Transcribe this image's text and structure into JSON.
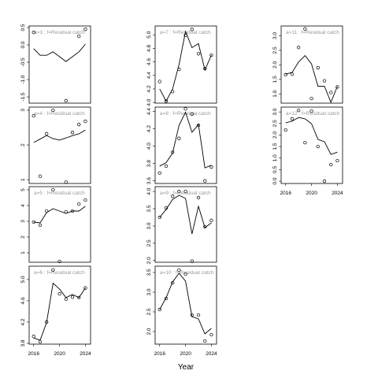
{
  "chart_data": [
    {
      "type": "line",
      "label": "a=3  :  f=Residual catch",
      "x": [
        2016,
        2017,
        2018,
        2019,
        2020,
        2021,
        2022,
        2023,
        2024
      ],
      "xlim": [
        2015.3,
        2024.8
      ],
      "ylim": [
        -1.68,
        0.545
      ],
      "yticks": [
        -1.5,
        {
          "value": -1,
          "label": "-1.0"
        },
        -0.5,
        {
          "value": 0,
          "label": "0.0"
        },
        0.5
      ],
      "series": [
        {
          "style": "points",
          "color": "#000000",
          "values": [
            0.36,
            null,
            null,
            null,
            null,
            -1.61,
            null,
            0.25,
            0.45
          ]
        },
        {
          "style": "line",
          "color": "#000000",
          "values": [
            -0.11,
            -0.3,
            -0.3,
            -0.2,
            -0.34,
            -0.48,
            -0.34,
            -0.2,
            0.02
          ]
        }
      ]
    },
    {
      "type": "line",
      "label": "a=4  :  f=Residual catch",
      "x": [
        2016,
        2017,
        2018,
        2019,
        2020,
        2021,
        2022,
        2023,
        2024
      ],
      "xlim": [
        2015.3,
        2024.8
      ],
      "ylim": [
        0.89,
        3.09
      ],
      "yticks": [
        1,
        2,
        3
      ],
      "series": [
        {
          "style": "points",
          "color": "#000000",
          "values": [
            2.84,
            1.1,
            2.32,
            3.0,
            null,
            0.93,
            2.36,
            2.59,
            2.68
          ]
        },
        {
          "style": "line",
          "color": "#000000",
          "values": [
            2.07,
            2.17,
            2.27,
            2.18,
            2.14,
            2.2,
            2.27,
            2.32,
            2.43
          ]
        }
      ]
    },
    {
      "type": "line",
      "label": "a=5  :  f=Residual catch",
      "x": [
        2016,
        2017,
        2018,
        2019,
        2020,
        2021,
        2022,
        2023,
        2024
      ],
      "xlim": [
        2015.3,
        2024.8
      ],
      "ylim": [
        0.4,
        5.2
      ],
      "yticks": [
        1,
        2,
        3,
        4,
        5
      ],
      "series": [
        {
          "style": "points",
          "color": "#000000",
          "values": [
            2.95,
            2.75,
            3.65,
            5.0,
            0.45,
            3.6,
            3.65,
            4.1,
            4.35
          ]
        },
        {
          "style": "line",
          "color": "#000000",
          "values": [
            2.95,
            2.9,
            3.55,
            3.8,
            3.65,
            3.5,
            3.65,
            3.65,
            3.95
          ]
        }
      ]
    },
    {
      "type": "line",
      "label": "a=6  :  f=Residual catch",
      "x": [
        2016,
        2017,
        2018,
        2019,
        2020,
        2021,
        2022,
        2023,
        2024
      ],
      "xlim": [
        2015.3,
        2024.8
      ],
      "ylim": [
        3.785,
        5.25
      ],
      "yticks": [
        3.8,
        4.2,
        4.6,
        {
          "value": 5,
          "label": "5.0"
        }
      ],
      "xticks": [
        2016,
        2020,
        2024
      ],
      "series": [
        {
          "style": "points",
          "color": "#000000",
          "values": [
            3.93,
            3.83,
            4.2,
            5.18,
            4.73,
            4.63,
            4.67,
            4.66,
            4.84
          ]
        },
        {
          "style": "line",
          "color": "#000000",
          "values": [
            3.9,
            3.86,
            4.19,
            4.93,
            4.82,
            4.66,
            4.72,
            4.66,
            4.84
          ]
        }
      ]
    },
    {
      "type": "line",
      "label": "a=7  :  f=Residual catch",
      "x": [
        2016,
        2017,
        2018,
        2019,
        2020,
        2021,
        2022,
        2023,
        2024
      ],
      "xlim": [
        2015.3,
        2024.8
      ],
      "ylim": [
        3.99,
        5.13
      ],
      "yticks": [
        {
          "value": 4,
          "label": "4.0"
        },
        4.2,
        4.4,
        4.6,
        4.8,
        {
          "value": 5,
          "label": "5.0"
        }
      ],
      "series": [
        {
          "style": "points",
          "color": "#000000",
          "values": [
            4.31,
            4.02,
            4.16,
            4.49,
            4.99,
            5.08,
            4.72,
            4.5,
            4.7
          ]
        },
        {
          "style": "line",
          "color": "#000000",
          "values": [
            4.2,
            4.02,
            4.2,
            4.56,
            5.05,
            4.81,
            4.87,
            4.48,
            4.7
          ]
        }
      ]
    },
    {
      "type": "line",
      "label": "a=8  :  f=Residual catch",
      "x": [
        2016,
        2017,
        2018,
        2019,
        2020,
        2021,
        2022,
        2023,
        2024
      ],
      "xlim": [
        2015.3,
        2024.8
      ],
      "ylim": [
        3.57,
        4.45
      ],
      "yticks": [
        3.6,
        3.8,
        {
          "value": 4,
          "label": "4.0"
        },
        4.2,
        4.4
      ],
      "series": [
        {
          "style": "points",
          "color": "#000000",
          "values": [
            3.69,
            3.77,
            3.93,
            4.09,
            4.43,
            4.37,
            4.24,
            3.6,
            3.76
          ]
        },
        {
          "style": "line",
          "color": "#000000",
          "values": [
            3.77,
            3.81,
            3.92,
            4.24,
            4.39,
            4.16,
            4.25,
            3.75,
            3.78
          ]
        }
      ]
    },
    {
      "type": "line",
      "label": "a=9  :  f=Residual catch",
      "x": [
        2016,
        2017,
        2018,
        2019,
        2020,
        2021,
        2022,
        2023,
        2024
      ],
      "xlim": [
        2015.3,
        2024.8
      ],
      "ylim": [
        1.95,
        4.14
      ],
      "yticks": [
        {
          "value": 2,
          "label": "2.0"
        },
        2.5,
        {
          "value": 3,
          "label": "3.0"
        },
        3.5,
        {
          "value": 4,
          "label": "4.0"
        }
      ],
      "series": [
        {
          "style": "points",
          "color": "#000000",
          "values": [
            3.25,
            3.52,
            3.86,
            4.0,
            4.0,
            1.98,
            3.82,
            2.98,
            3.16
          ]
        },
        {
          "style": "line",
          "color": "#000000",
          "values": [
            3.25,
            3.48,
            3.77,
            3.89,
            3.8,
            2.77,
            3.57,
            2.95,
            3.09
          ]
        }
      ]
    },
    {
      "type": "line",
      "label": "a=10  :  f=Residual catch",
      "x": [
        2016,
        2017,
        2018,
        2019,
        2020,
        2021,
        2022,
        2023,
        2024
      ],
      "xlim": [
        2015.3,
        2024.8
      ],
      "ylim": [
        1.68,
        3.66
      ],
      "yticks": [
        {
          "value": 2,
          "label": "2.0"
        },
        2.5,
        {
          "value": 3,
          "label": "3.0"
        },
        3.5
      ],
      "xticks": [
        2016,
        2020,
        2024
      ],
      "xlabel": "Year",
      "series": [
        {
          "style": "points",
          "color": "#000000",
          "values": [
            2.56,
            2.84,
            3.24,
            3.56,
            3.46,
            2.42,
            2.42,
            1.76,
            1.92
          ]
        },
        {
          "style": "line",
          "color": "#000000",
          "values": [
            2.56,
            2.86,
            3.26,
            3.48,
            3.28,
            2.38,
            2.32,
            1.94,
            2.08
          ]
        }
      ]
    },
    {
      "type": "line",
      "label": "a=11  :  f=Residual catch",
      "x": [
        2016,
        2017,
        2018,
        2019,
        2020,
        2021,
        2022,
        2023,
        2024
      ],
      "xlim": [
        2015.3,
        2024.8
      ],
      "ylim": [
        0.68,
        3.34
      ],
      "yticks": [
        {
          "value": 1,
          "label": "1.0"
        },
        1.5,
        {
          "value": 2,
          "label": "2.0"
        },
        2.5,
        {
          "value": 3,
          "label": "3.0"
        }
      ],
      "series": [
        {
          "style": "points",
          "color": "#000000",
          "values": [
            1.66,
            1.68,
            2.6,
            3.24,
            0.84,
            1.9,
            1.45,
            1.05,
            1.24
          ]
        },
        {
          "style": "line",
          "color": "#000000",
          "values": [
            1.68,
            1.74,
            2.1,
            2.32,
            2.03,
            1.26,
            1.26,
            0.71,
            1.26
          ]
        }
      ]
    },
    {
      "type": "line",
      "label": "a=12  :  f=Residual catch",
      "x": [
        2016,
        2017,
        2018,
        2019,
        2020,
        2021,
        2022,
        2023,
        2024
      ],
      "xlim": [
        2015.3,
        2024.8
      ],
      "ylim": [
        -0.1,
        3.21
      ],
      "yticks": [
        {
          "value": 0,
          "label": "0.0"
        },
        0.5,
        {
          "value": 1,
          "label": "1.0"
        },
        1.5,
        {
          "value": 2,
          "label": "2.0"
        },
        2.5,
        {
          "value": 3,
          "label": "3.0"
        }
      ],
      "xticks": [
        2016,
        2020,
        2024
      ],
      "series": [
        {
          "style": "points",
          "color": "#000000",
          "values": [
            2.22,
            2.7,
            3.07,
            1.67,
            3.04,
            1.5,
            0,
            0.72,
            0.89
          ]
        },
        {
          "style": "line",
          "color": "#000000",
          "values": [
            2.53,
            2.6,
            2.76,
            2.7,
            2.49,
            1.81,
            1.71,
            1.16,
            1.26
          ]
        }
      ]
    }
  ]
}
